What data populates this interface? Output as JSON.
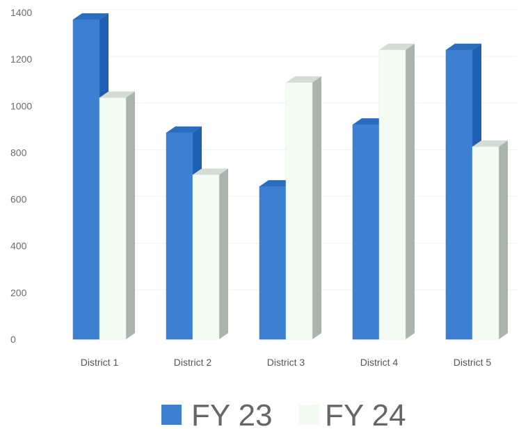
{
  "chart_data": {
    "type": "bar",
    "title": "",
    "xlabel": "",
    "ylabel": "",
    "ylim": [
      0,
      1400
    ],
    "yticks": [
      0,
      200,
      400,
      600,
      800,
      1000,
      1200,
      1400
    ],
    "yticks_labels": [
      "0",
      "200",
      "400",
      "600",
      "800",
      "1000",
      "1200",
      "1400"
    ],
    "categories": [
      "District 1",
      "District 2",
      "District 3",
      "District 4",
      "District 5"
    ],
    "series": [
      {
        "name": "FY 23",
        "values": [
          1370,
          885,
          655,
          920,
          1240
        ],
        "color": "#3d7fd0"
      },
      {
        "name": "FY 24",
        "values": [
          1035,
          705,
          1100,
          1240,
          825
        ],
        "color": "#f3fbf3"
      }
    ],
    "grid": true,
    "legend_position": "bottom",
    "style": "3d-columns"
  }
}
